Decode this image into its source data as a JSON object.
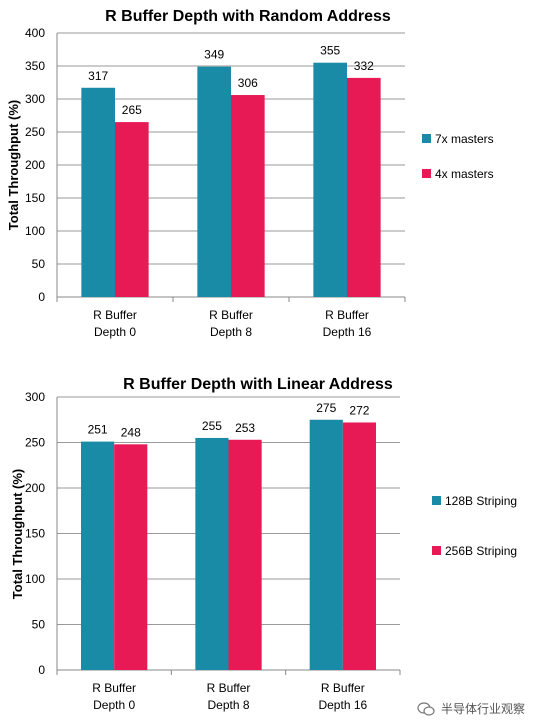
{
  "colors": {
    "teal": "#1a8ba6",
    "crimson": "#e81a55"
  },
  "chart_data": [
    {
      "type": "bar",
      "title": "R Buffer Depth with Random Address",
      "ylabel": "Total Throughput (%)",
      "xlabel": "",
      "categories": [
        [
          "R Buffer",
          "Depth 0"
        ],
        [
          "R Buffer",
          "Depth 8"
        ],
        [
          "R Buffer",
          "Depth 16"
        ]
      ],
      "ylim": [
        0,
        400
      ],
      "yticks": [
        0,
        50,
        100,
        150,
        200,
        250,
        300,
        350,
        400
      ],
      "grid": true,
      "legend_position": "right",
      "series": [
        {
          "name": "7x masters",
          "values": [
            317,
            349,
            355
          ],
          "color": "#1a8ba6"
        },
        {
          "name": "4x masters",
          "values": [
            265,
            306,
            332
          ],
          "color": "#e81a55"
        }
      ]
    },
    {
      "type": "bar",
      "title": "R Buffer Depth with Linear Address",
      "ylabel": "Total Throughput (%)",
      "xlabel": "",
      "categories": [
        [
          "R Buffer",
          "Depth 0"
        ],
        [
          "R Buffer",
          "Depth 8"
        ],
        [
          "R Buffer",
          "Depth 16"
        ]
      ],
      "ylim": [
        0,
        300
      ],
      "yticks": [
        0,
        50,
        100,
        150,
        200,
        250,
        300
      ],
      "grid": true,
      "legend_position": "right",
      "series": [
        {
          "name": "128B Striping",
          "values": [
            251,
            255,
            275
          ],
          "color": "#1a8ba6"
        },
        {
          "name": "256B  Striping",
          "values": [
            248,
            253,
            272
          ],
          "color": "#e81a55"
        }
      ]
    }
  ],
  "watermark": {
    "text": "半导体行业观察",
    "icon": "wechat-icon"
  }
}
